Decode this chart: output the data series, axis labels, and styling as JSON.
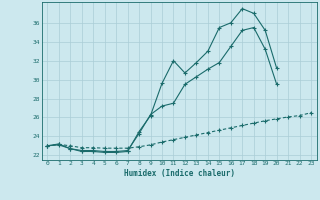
{
  "xlabel": "Humidex (Indice chaleur)",
  "bg_color": "#cce8ee",
  "grid_color": "#aacdd6",
  "line_color": "#1a6b6b",
  "xlim": [
    -0.5,
    23.5
  ],
  "ylim": [
    21.5,
    38.2
  ],
  "yticks": [
    22,
    24,
    26,
    28,
    30,
    32,
    34,
    36
  ],
  "xticks": [
    0,
    1,
    2,
    3,
    4,
    5,
    6,
    7,
    8,
    9,
    10,
    11,
    12,
    13,
    14,
    15,
    16,
    17,
    18,
    19,
    20,
    21,
    22,
    23
  ],
  "line1_x": [
    0,
    1,
    2,
    3,
    4,
    5,
    6,
    7,
    8,
    9,
    10,
    11,
    12,
    13,
    14,
    15,
    16,
    17,
    18,
    19,
    20
  ],
  "line1_y": [
    23.0,
    23.2,
    22.7,
    22.4,
    22.4,
    22.3,
    22.3,
    22.4,
    24.5,
    26.2,
    29.6,
    32.0,
    30.7,
    31.8,
    33.0,
    35.5,
    36.0,
    37.5,
    37.0,
    35.2,
    31.2
  ],
  "line2_x": [
    0,
    1,
    2,
    3,
    4,
    5,
    6,
    7,
    8,
    9,
    10,
    11,
    12,
    13,
    14,
    15,
    16,
    17,
    18,
    19,
    20
  ],
  "line2_y": [
    23.0,
    23.1,
    22.7,
    22.5,
    22.5,
    22.4,
    22.4,
    22.5,
    24.3,
    26.3,
    27.2,
    27.5,
    29.5,
    30.3,
    31.1,
    31.8,
    33.5,
    35.2,
    35.5,
    33.2,
    29.5
  ],
  "line3_x": [
    0,
    1,
    2,
    3,
    4,
    5,
    6,
    7,
    8,
    9,
    10,
    11,
    12,
    13,
    14,
    15,
    16,
    17,
    18,
    19,
    20,
    21,
    22,
    23
  ],
  "line3_y": [
    23.0,
    23.15,
    23.0,
    22.8,
    22.8,
    22.75,
    22.75,
    22.75,
    22.9,
    23.1,
    23.4,
    23.65,
    23.9,
    24.15,
    24.4,
    24.65,
    24.9,
    25.15,
    25.4,
    25.65,
    25.85,
    26.05,
    26.2,
    26.5
  ]
}
